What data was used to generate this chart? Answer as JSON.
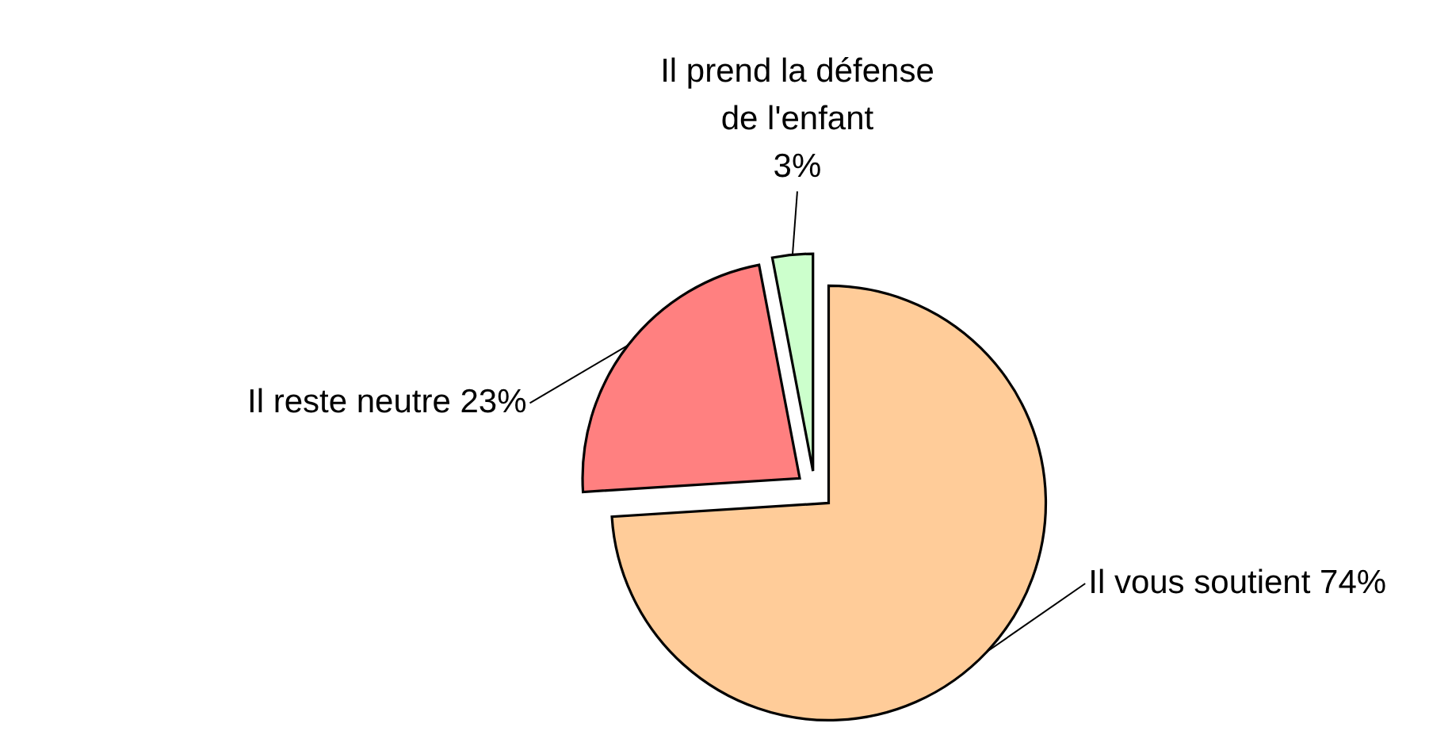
{
  "chart_data": {
    "type": "pie",
    "categories": [
      "Il vous soutient",
      "Il reste neutre",
      "Il prend la défense de l'enfant"
    ],
    "values": [
      74,
      23,
      3
    ],
    "colors": [
      "#ffcc99",
      "#ff8080",
      "#ccffcc"
    ],
    "value_labels": [
      "74%",
      "23%",
      "3%"
    ]
  }
}
